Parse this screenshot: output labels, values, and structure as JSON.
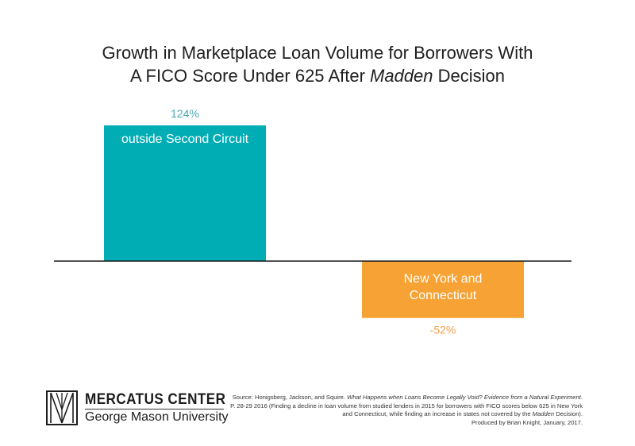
{
  "title": {
    "line1": "Growth in Marketplace Loan Volume for Borrowers With",
    "line2_before": "A FICO Score Under 625 After ",
    "line2_italic": "Madden",
    "line2_after": " Decision"
  },
  "chart_data": {
    "type": "bar",
    "title": "Growth in Marketplace Loan Volume for Borrowers With A FICO Score Under 625 After Madden Decision",
    "categories": [
      "outside Second Circuit",
      "New York and Connecticut"
    ],
    "category_lines": [
      [
        "outside Second Circuit"
      ],
      [
        "New York and",
        "Connecticut"
      ]
    ],
    "values": [
      124,
      -52
    ],
    "value_labels": [
      "124%",
      "-52%"
    ],
    "unit": "%",
    "colors": [
      "#00adb5",
      "#f7a234"
    ],
    "value_label_colors": [
      "#4aa8ae",
      "#f0a04a"
    ],
    "ylim": [
      -52,
      124
    ],
    "grid": false,
    "xlabel": "",
    "ylabel": ""
  },
  "logo": {
    "name": "MERCATUS CENTER",
    "subtitle": "George Mason University",
    "icon": "mercatus-logo-icon"
  },
  "source": {
    "part1": "Source: Honigsberg, Jackson, and Squire. ",
    "title_italic": "What Happens when Loans Become Legally Void? Evidence from a Natural Experiment",
    "part2": ". P. 28-29 2016 (Finding a decline in loan volume from studied lenders in 2015 for borrowers with FICO scores below 625 in New York and Connecticut, while finding an increase in states not covered by the ",
    "madden_italic": "Madden",
    "part3": " Decision).",
    "produced_by": "Produced by Brian Knight, January, 2017."
  }
}
